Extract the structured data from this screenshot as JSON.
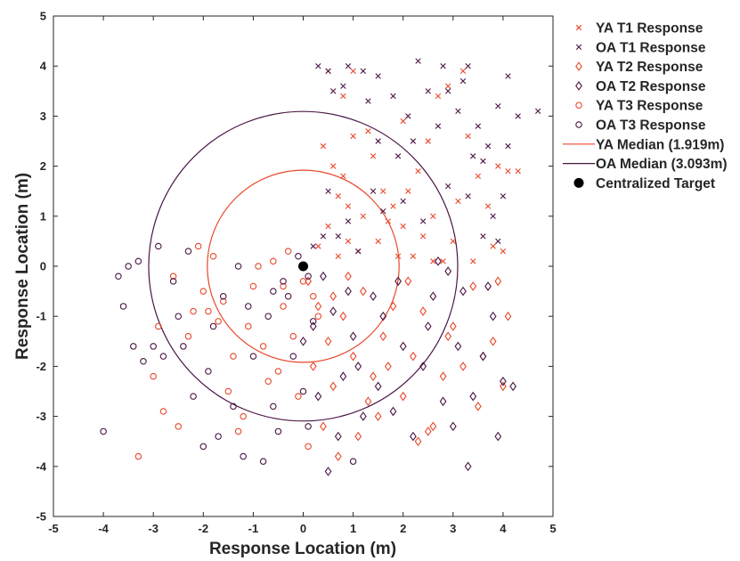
{
  "chart_data": {
    "type": "scatter",
    "title": "",
    "xlabel": "Response Location (m)",
    "ylabel": "Response Location (m)",
    "xlim": [
      -5,
      5
    ],
    "ylim": [
      -5,
      5
    ],
    "xticks": [
      "-5",
      "-4",
      "-3",
      "-2",
      "-1",
      "0",
      "1",
      "2",
      "3",
      "4",
      "5"
    ],
    "yticks": [
      "5",
      "4",
      "3",
      "2",
      "1",
      "0",
      "-1",
      "-2",
      "-3",
      "-4",
      "-5"
    ],
    "grid": false,
    "legend_position": "outside-right",
    "colors": {
      "YA": "#e8472a",
      "OA": "#4a1545"
    },
    "legend": [
      {
        "label": "YA T1 Response",
        "marker": "x",
        "color": "#e8472a"
      },
      {
        "label": "OA T1 Response",
        "marker": "x",
        "color": "#4a1545"
      },
      {
        "label": "YA T2 Response",
        "marker": "diamond",
        "color": "#e8472a"
      },
      {
        "label": "OA T2 Response",
        "marker": "diamond",
        "color": "#4a1545"
      },
      {
        "label": "YA T3 Response",
        "marker": "circle",
        "color": "#e8472a"
      },
      {
        "label": "OA T3 Response",
        "marker": "circle",
        "color": "#4a1545"
      },
      {
        "label": "YA Median (1.919m)",
        "marker": "line",
        "color": "#e8472a"
      },
      {
        "label": "OA Median (3.093m)",
        "marker": "line",
        "color": "#4a1545"
      },
      {
        "label": "Centralized Target",
        "marker": "dot",
        "color": "#000000"
      }
    ],
    "medians": [
      {
        "group": "YA",
        "radius": 1.919,
        "color": "#e8472a"
      },
      {
        "group": "OA",
        "radius": 3.093,
        "color": "#4a1545"
      }
    ],
    "target": {
      "x": 0,
      "y": 0
    },
    "series": [
      {
        "name": "YA T1 Response",
        "marker": "x",
        "color": "#e8472a",
        "points": [
          [
            0.3,
            0.4
          ],
          [
            0.5,
            0.8
          ],
          [
            0.7,
            1.4
          ],
          [
            0.4,
            2.4
          ],
          [
            0.6,
            2.0
          ],
          [
            0.9,
            1.2
          ],
          [
            1.1,
            0.3
          ],
          [
            1.2,
            1.0
          ],
          [
            0.8,
            3.4
          ],
          [
            0.5,
            3.9
          ],
          [
            1.0,
            2.6
          ],
          [
            1.3,
            2.7
          ],
          [
            1.6,
            1.5
          ],
          [
            1.5,
            0.5
          ],
          [
            1.7,
            0.9
          ],
          [
            2.0,
            0.8
          ],
          [
            2.1,
            1.5
          ],
          [
            2.2,
            0.2
          ],
          [
            2.4,
            0.6
          ],
          [
            2.6,
            1.0
          ],
          [
            2.3,
            1.9
          ],
          [
            2.5,
            2.5
          ],
          [
            2.7,
            3.4
          ],
          [
            2.8,
            0.1
          ],
          [
            3.0,
            0.5
          ],
          [
            3.1,
            1.3
          ],
          [
            3.3,
            2.6
          ],
          [
            3.5,
            1.8
          ],
          [
            3.7,
            1.2
          ],
          [
            3.9,
            2.0
          ],
          [
            4.1,
            1.9
          ],
          [
            4.3,
            1.9
          ],
          [
            3.8,
            0.4
          ],
          [
            4.0,
            0.3
          ],
          [
            0.9,
            0.5
          ],
          [
            0.7,
            0.2
          ],
          [
            1.4,
            2.2
          ],
          [
            2.9,
            3.6
          ],
          [
            3.2,
            3.9
          ],
          [
            1.0,
            3.9
          ],
          [
            1.9,
            0.2
          ],
          [
            3.4,
            0.1
          ],
          [
            0.8,
            1.8
          ],
          [
            2.0,
            2.9
          ],
          [
            1.8,
            1.2
          ],
          [
            2.6,
            0.1
          ]
        ]
      },
      {
        "name": "OA T1 Response",
        "marker": "x",
        "color": "#4a1545",
        "points": [
          [
            0.2,
            0.4
          ],
          [
            0.4,
            0.6
          ],
          [
            0.5,
            1.5
          ],
          [
            0.6,
            3.5
          ],
          [
            0.3,
            4.0
          ],
          [
            0.8,
            3.6
          ],
          [
            1.2,
            3.9
          ],
          [
            1.3,
            3.3
          ],
          [
            1.5,
            2.5
          ],
          [
            1.6,
            1.1
          ],
          [
            1.9,
            2.2
          ],
          [
            2.1,
            3.0
          ],
          [
            2.3,
            4.1
          ],
          [
            2.5,
            3.5
          ],
          [
            2.7,
            2.8
          ],
          [
            2.9,
            3.5
          ],
          [
            3.1,
            3.1
          ],
          [
            3.3,
            4.0
          ],
          [
            3.5,
            2.8
          ],
          [
            3.7,
            2.4
          ],
          [
            3.9,
            3.2
          ],
          [
            4.1,
            3.8
          ],
          [
            4.3,
            3.0
          ],
          [
            4.7,
            3.1
          ],
          [
            3.4,
            2.2
          ],
          [
            3.6,
            2.1
          ],
          [
            3.8,
            1.0
          ],
          [
            4.0,
            1.4
          ],
          [
            3.6,
            0.6
          ],
          [
            3.9,
            0.5
          ],
          [
            2.9,
            1.6
          ],
          [
            2.4,
            0.9
          ],
          [
            2.0,
            1.3
          ],
          [
            1.4,
            1.5
          ],
          [
            0.7,
            0.6
          ],
          [
            0.9,
            0.9
          ],
          [
            1.1,
            0.3
          ],
          [
            0.5,
            3.9
          ],
          [
            0.9,
            4.0
          ],
          [
            1.5,
            3.8
          ],
          [
            2.8,
            4.0
          ],
          [
            3.2,
            3.7
          ],
          [
            4.1,
            2.4
          ],
          [
            3.3,
            1.4
          ],
          [
            2.2,
            2.5
          ],
          [
            1.8,
            3.4
          ]
        ]
      },
      {
        "name": "YA T2 Response",
        "marker": "diamond",
        "color": "#e8472a",
        "points": [
          [
            0.1,
            -0.3
          ],
          [
            0.3,
            -0.8
          ],
          [
            0.5,
            -1.5
          ],
          [
            0.2,
            -2.0
          ],
          [
            0.6,
            -2.4
          ],
          [
            0.8,
            -1.0
          ],
          [
            1.0,
            -1.8
          ],
          [
            1.2,
            -0.5
          ],
          [
            1.4,
            -2.2
          ],
          [
            1.6,
            -1.4
          ],
          [
            1.8,
            -0.8
          ],
          [
            2.0,
            -2.6
          ],
          [
            2.2,
            -1.8
          ],
          [
            2.4,
            -0.9
          ],
          [
            2.6,
            -3.2
          ],
          [
            2.8,
            -2.2
          ],
          [
            3.0,
            -1.2
          ],
          [
            3.2,
            -2.0
          ],
          [
            3.4,
            -0.4
          ],
          [
            3.6,
            -1.8
          ],
          [
            3.8,
            -1.5
          ],
          [
            4.0,
            -2.4
          ],
          [
            4.1,
            -1.0
          ],
          [
            3.9,
            -0.3
          ],
          [
            2.1,
            -0.3
          ],
          [
            1.5,
            -3.0
          ],
          [
            1.1,
            -3.4
          ],
          [
            0.7,
            -3.8
          ],
          [
            0.4,
            -3.2
          ],
          [
            1.3,
            -2.7
          ],
          [
            2.5,
            -3.3
          ],
          [
            2.9,
            -1.4
          ],
          [
            3.5,
            -2.8
          ],
          [
            0.9,
            -0.2
          ],
          [
            1.7,
            -2.0
          ],
          [
            2.3,
            -3.5
          ],
          [
            0.6,
            -0.6
          ]
        ]
      },
      {
        "name": "OA T2 Response",
        "marker": "diamond",
        "color": "#4a1545",
        "points": [
          [
            0.0,
            -1.5
          ],
          [
            0.2,
            -1.2
          ],
          [
            0.4,
            -0.2
          ],
          [
            0.6,
            -0.9
          ],
          [
            0.8,
            -2.2
          ],
          [
            1.0,
            -1.4
          ],
          [
            1.2,
            -3.0
          ],
          [
            1.4,
            -0.6
          ],
          [
            1.6,
            -1.0
          ],
          [
            1.8,
            -2.9
          ],
          [
            2.0,
            -1.6
          ],
          [
            2.2,
            -3.4
          ],
          [
            2.4,
            -2.0
          ],
          [
            2.6,
            -0.6
          ],
          [
            2.8,
            -2.7
          ],
          [
            3.0,
            -3.2
          ],
          [
            3.2,
            -0.5
          ],
          [
            3.4,
            -2.6
          ],
          [
            3.6,
            -1.8
          ],
          [
            3.8,
            -1.0
          ],
          [
            4.0,
            -2.3
          ],
          [
            4.2,
            -2.4
          ],
          [
            3.9,
            -3.4
          ],
          [
            3.7,
            -0.4
          ],
          [
            2.9,
            -0.1
          ],
          [
            2.5,
            -1.2
          ],
          [
            1.5,
            -2.4
          ],
          [
            1.1,
            -2.0
          ],
          [
            0.7,
            -3.4
          ],
          [
            0.3,
            -2.6
          ],
          [
            0.9,
            -0.5
          ],
          [
            3.3,
            -4.0
          ],
          [
            0.5,
            -4.1
          ],
          [
            2.7,
            0.1
          ],
          [
            1.9,
            -0.3
          ],
          [
            3.1,
            -1.6
          ]
        ]
      },
      {
        "name": "YA T3 Response",
        "marker": "circle",
        "color": "#e8472a",
        "points": [
          [
            -3.3,
            -3.8
          ],
          [
            -2.8,
            -2.9
          ],
          [
            -2.5,
            -3.2
          ],
          [
            -2.3,
            -1.4
          ],
          [
            -2.0,
            -0.5
          ],
          [
            -1.8,
            0.2
          ],
          [
            -1.6,
            -0.7
          ],
          [
            -1.4,
            -1.8
          ],
          [
            -1.2,
            -3.0
          ],
          [
            -1.0,
            -0.4
          ],
          [
            -0.8,
            -1.6
          ],
          [
            -0.6,
            0.1
          ],
          [
            -0.4,
            -0.8
          ],
          [
            -0.2,
            -1.4
          ],
          [
            0.0,
            -0.3
          ],
          [
            0.2,
            -0.6
          ],
          [
            -0.3,
            0.3
          ],
          [
            -0.7,
            -2.3
          ],
          [
            -1.3,
            -3.3
          ],
          [
            -2.1,
            0.4
          ],
          [
            -2.6,
            -0.2
          ],
          [
            -3.0,
            -2.2
          ],
          [
            -2.9,
            -1.2
          ],
          [
            -1.9,
            -0.9
          ],
          [
            -1.1,
            -1.2
          ],
          [
            -0.5,
            -2.1
          ],
          [
            0.1,
            -3.6
          ],
          [
            -0.1,
            -2.6
          ],
          [
            -1.5,
            -2.5
          ],
          [
            -2.2,
            -0.9
          ],
          [
            -0.9,
            0.0
          ],
          [
            -0.4,
            -0.4
          ],
          [
            0.3,
            -1.0
          ],
          [
            -1.7,
            -1.1
          ]
        ]
      },
      {
        "name": "OA T3 Response",
        "marker": "circle",
        "color": "#4a1545",
        "points": [
          [
            -4.0,
            -3.3
          ],
          [
            -3.7,
            -0.2
          ],
          [
            -3.6,
            -0.8
          ],
          [
            -3.4,
            -1.6
          ],
          [
            -3.2,
            -1.9
          ],
          [
            -3.0,
            -1.6
          ],
          [
            -2.8,
            -1.8
          ],
          [
            -2.6,
            -0.3
          ],
          [
            -2.4,
            -1.6
          ],
          [
            -2.2,
            -2.6
          ],
          [
            -2.0,
            -3.6
          ],
          [
            -1.8,
            -1.2
          ],
          [
            -1.6,
            -0.6
          ],
          [
            -1.4,
            -2.8
          ],
          [
            -1.2,
            -3.8
          ],
          [
            -1.0,
            -1.8
          ],
          [
            -0.8,
            -3.9
          ],
          [
            -0.6,
            -2.8
          ],
          [
            -0.4,
            -0.3
          ],
          [
            -0.2,
            -1.8
          ],
          [
            0.0,
            -2.5
          ],
          [
            0.1,
            -3.2
          ],
          [
            0.2,
            -1.1
          ],
          [
            -0.3,
            -0.6
          ],
          [
            -0.6,
            -0.5
          ],
          [
            -1.3,
            0.0
          ],
          [
            -2.3,
            0.3
          ],
          [
            -2.9,
            0.4
          ],
          [
            -3.3,
            0.1
          ],
          [
            -3.5,
            0.0
          ],
          [
            -1.1,
            -0.8
          ],
          [
            -0.5,
            -3.3
          ],
          [
            -1.7,
            -3.4
          ],
          [
            -2.5,
            -1.0
          ],
          [
            0.1,
            -0.2
          ],
          [
            -0.1,
            0.2
          ],
          [
            -0.7,
            -1.0
          ],
          [
            -1.9,
            -2.1
          ],
          [
            1.0,
            -3.9
          ]
        ]
      }
    ]
  }
}
